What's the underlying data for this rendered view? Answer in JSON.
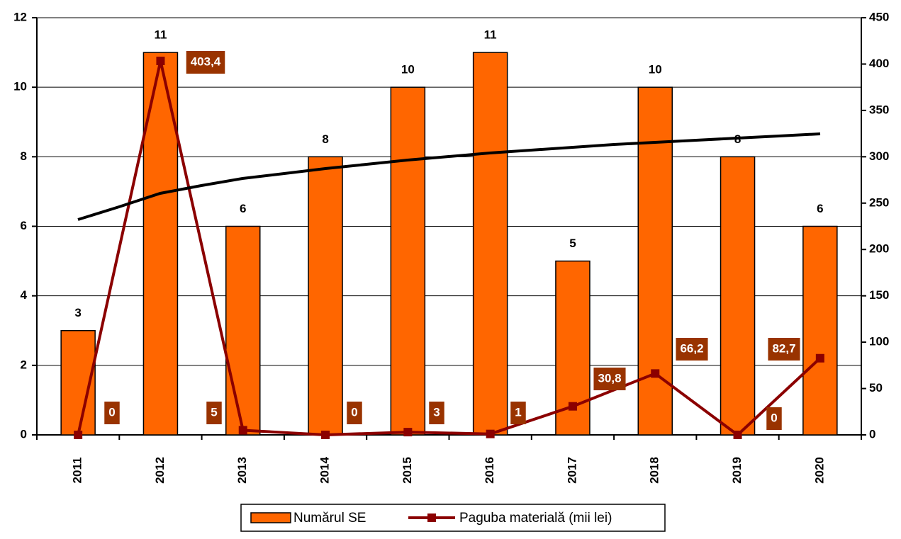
{
  "chart_data": {
    "type": "bar-line",
    "categories": [
      "2011",
      "2012",
      "2013",
      "2014",
      "2015",
      "2016",
      "2017",
      "2018",
      "2019",
      "2020"
    ],
    "series": [
      {
        "name": "Numărul SE",
        "type": "bar",
        "color": "#ff6600",
        "values": [
          3,
          11,
          6,
          8,
          10,
          11,
          5,
          10,
          8,
          6
        ]
      },
      {
        "name": "Paguba materială (mii lei)",
        "type": "line",
        "axis": "y2",
        "color": "#8b0000",
        "values": [
          0,
          403.4,
          5,
          0,
          3,
          1,
          30.8,
          66.2,
          0,
          82.7
        ],
        "value_labels": [
          "0",
          "403,4",
          "5",
          "0",
          "3",
          "1",
          "30,8",
          "66,2",
          "0",
          "82,7"
        ]
      }
    ],
    "ylim": [
      0,
      12
    ],
    "yticks": [
      0,
      2,
      4,
      6,
      8,
      10,
      12
    ],
    "y2lim": [
      0,
      450
    ],
    "y2ticks": [
      0,
      50,
      100,
      150,
      200,
      250,
      300,
      350,
      400,
      450
    ],
    "grid": true,
    "legend": "bottom"
  }
}
